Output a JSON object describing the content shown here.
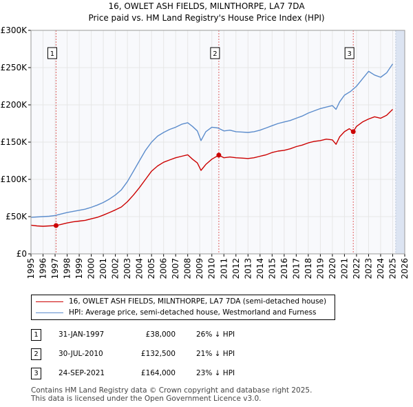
{
  "title_line1": "16, OWLET ASH FIELDS, MILNTHORPE, LA7 7DA",
  "title_line2": "Price paid vs. HM Land Registry's House Price Index (HPI)",
  "colors": {
    "property": "#cc0000",
    "hpi": "#5b8ccc",
    "marker_line": "#e06060",
    "future_shade": "#dce4f2"
  },
  "chart_data": {
    "type": "line",
    "title": "Price paid vs. HM Land Registry's House Price Index (HPI)",
    "xlabel": "",
    "ylabel": "",
    "xlim": [
      1995,
      2026
    ],
    "ylim": [
      0,
      300000
    ],
    "x_ticks": [
      "1995",
      "1996",
      "1997",
      "1998",
      "1999",
      "2000",
      "2001",
      "2002",
      "2003",
      "2004",
      "2005",
      "2006",
      "2007",
      "2008",
      "2009",
      "2010",
      "2011",
      "2012",
      "2013",
      "2014",
      "2015",
      "2016",
      "2017",
      "2018",
      "2019",
      "2020",
      "2021",
      "2022",
      "2023",
      "2024",
      "2025",
      "2026"
    ],
    "y_ticks": [
      {
        "value": 0,
        "label": "£0"
      },
      {
        "value": 50000,
        "label": "£50K"
      },
      {
        "value": 100000,
        "label": "£100K"
      },
      {
        "value": 150000,
        "label": "£150K"
      },
      {
        "value": 200000,
        "label": "£200K"
      },
      {
        "value": 250000,
        "label": "£250K"
      },
      {
        "value": 300000,
        "label": "£300K"
      }
    ],
    "grid": true,
    "future_shading_from": 2025.25,
    "series": [
      {
        "name": "16, OWLET ASH FIELDS, MILNTHORPE, LA7 7DA (semi-detached house)",
        "x": [
          1995.0,
          1995.5,
          1996.0,
          1996.5,
          1997.08,
          1997.5,
          1998.0,
          1998.5,
          1999.0,
          1999.5,
          2000.0,
          2000.5,
          2001.0,
          2001.5,
          2002.0,
          2002.5,
          2003.0,
          2003.5,
          2004.0,
          2004.5,
          2005.0,
          2005.5,
          2006.0,
          2006.5,
          2007.0,
          2007.5,
          2008.0,
          2008.4,
          2008.8,
          2009.1,
          2009.5,
          2010.0,
          2010.58,
          2011.0,
          2011.5,
          2012.0,
          2012.5,
          2013.0,
          2013.5,
          2014.0,
          2014.5,
          2015.0,
          2015.5,
          2016.0,
          2016.5,
          2017.0,
          2017.5,
          2018.0,
          2018.5,
          2019.0,
          2019.5,
          2020.0,
          2020.3,
          2020.6,
          2021.0,
          2021.4,
          2021.73,
          2022.0,
          2022.5,
          2023.0,
          2023.5,
          2024.0,
          2024.5,
          2025.0
        ],
        "y": [
          38500,
          37500,
          37000,
          37500,
          38000,
          39500,
          41500,
          43000,
          44000,
          45000,
          47000,
          49000,
          52000,
          55500,
          59000,
          63000,
          70000,
          79000,
          89000,
          100000,
          111000,
          118000,
          123000,
          126000,
          129000,
          131000,
          133000,
          127000,
          122000,
          112000,
          120000,
          127000,
          132500,
          129000,
          130000,
          129000,
          128500,
          128000,
          129000,
          131000,
          133000,
          136000,
          138000,
          139000,
          141000,
          144000,
          146000,
          149000,
          151000,
          152000,
          154000,
          153000,
          147000,
          157000,
          164000,
          168000,
          164000,
          171000,
          177000,
          181000,
          184000,
          182000,
          186000,
          194000
        ]
      },
      {
        "name": "HPI: Average price, semi-detached house, Westmorland and Furness",
        "x": [
          1995.0,
          1995.5,
          1996.0,
          1996.5,
          1997.0,
          1997.5,
          1998.0,
          1998.5,
          1999.0,
          1999.5,
          2000.0,
          2000.5,
          2001.0,
          2001.5,
          2002.0,
          2002.5,
          2003.0,
          2003.5,
          2004.0,
          2004.5,
          2005.0,
          2005.5,
          2006.0,
          2006.5,
          2007.0,
          2007.5,
          2008.0,
          2008.4,
          2008.8,
          2009.1,
          2009.5,
          2010.0,
          2010.5,
          2011.0,
          2011.5,
          2012.0,
          2012.5,
          2013.0,
          2013.5,
          2014.0,
          2014.5,
          2015.0,
          2015.5,
          2016.0,
          2016.5,
          2017.0,
          2017.5,
          2018.0,
          2018.5,
          2019.0,
          2019.5,
          2020.0,
          2020.3,
          2020.6,
          2021.0,
          2021.5,
          2022.0,
          2022.5,
          2023.0,
          2023.5,
          2024.0,
          2024.5,
          2025.0
        ],
        "y": [
          49000,
          49500,
          50000,
          50500,
          51500,
          53500,
          55500,
          57000,
          58500,
          60000,
          62500,
          65500,
          69000,
          73500,
          79000,
          86000,
          97000,
          111000,
          125000,
          139000,
          150000,
          158000,
          163000,
          167000,
          170000,
          174000,
          176000,
          171000,
          165000,
          152000,
          164000,
          170000,
          169000,
          165000,
          166000,
          164000,
          163500,
          163000,
          164000,
          166000,
          169000,
          172000,
          175000,
          177000,
          179000,
          182000,
          185000,
          189000,
          192000,
          195000,
          197000,
          199000,
          194000,
          204000,
          213000,
          218000,
          225000,
          235000,
          245000,
          240000,
          237000,
          243000,
          255000
        ]
      }
    ],
    "sales": [
      {
        "num": "1",
        "x": 1997.08,
        "price": 38000
      },
      {
        "num": "2",
        "x": 2010.58,
        "price": 132500
      },
      {
        "num": "3",
        "x": 2021.73,
        "price": 164000
      }
    ]
  },
  "legend": {
    "property_label": "16, OWLET ASH FIELDS, MILNTHORPE, LA7 7DA (semi-detached house)",
    "hpi_label": "HPI: Average price, semi-detached house, Westmorland and Furness"
  },
  "sales_table": [
    {
      "num": "1",
      "date": "31-JAN-1997",
      "price": "£38,000",
      "hpi": "26% ↓ HPI"
    },
    {
      "num": "2",
      "date": "30-JUL-2010",
      "price": "£132,500",
      "hpi": "21% ↓ HPI"
    },
    {
      "num": "3",
      "date": "24-SEP-2021",
      "price": "£164,000",
      "hpi": "23% ↓ HPI"
    }
  ],
  "footer_line1": "Contains HM Land Registry data © Crown copyright and database right 2025.",
  "footer_line2": "This data is licensed under the Open Government Licence v3.0."
}
